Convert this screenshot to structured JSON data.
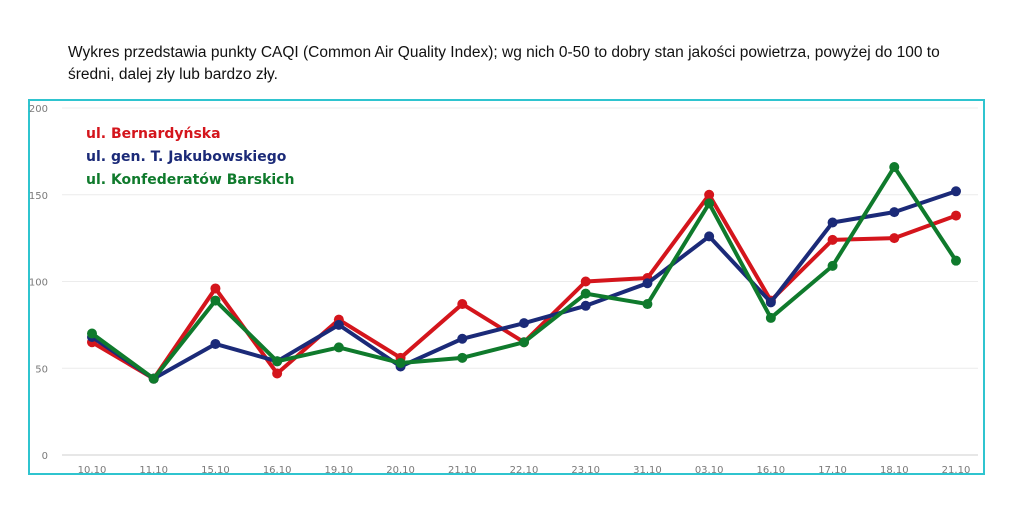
{
  "description_text": "Wykres przedstawia punkty CAQI (Common Air Quality Index); wg nich 0-50 to dobry stan jakości powietrza, powyżej do 100 to średni, dalej zły lub bardzo zły.",
  "chart_data": {
    "type": "line",
    "title": "",
    "xlabel": "",
    "ylabel": "",
    "ylim": [
      0,
      200
    ],
    "yticks": [
      0,
      50,
      100,
      150,
      200
    ],
    "grid": true,
    "legend_position": "top-left",
    "categories": [
      "10.10",
      "11.10",
      "15.10",
      "16.10",
      "19.10",
      "20.10",
      "21.10",
      "22.10",
      "23.10",
      "31.10",
      "03.10",
      "16.10",
      "17.10",
      "18.10",
      "21.10"
    ],
    "series": [
      {
        "name": "ul. Bernardyńska",
        "color": "#d4151c",
        "values": [
          65,
          44,
          96,
          47,
          78,
          56,
          87,
          65,
          100,
          102,
          150,
          89,
          124,
          125,
          138
        ]
      },
      {
        "name": "ul. gen. T. Jakubowskiego",
        "color": "#1b2a78",
        "values": [
          68,
          44,
          64,
          54,
          75,
          51,
          67,
          76,
          86,
          99,
          126,
          88,
          134,
          140,
          152
        ]
      },
      {
        "name": "ul. Konfederatów Barskich",
        "color": "#0f7a2c",
        "values": [
          70,
          44,
          89,
          54,
          62,
          53,
          56,
          65,
          93,
          87,
          145,
          79,
          109,
          166,
          112
        ]
      }
    ]
  }
}
